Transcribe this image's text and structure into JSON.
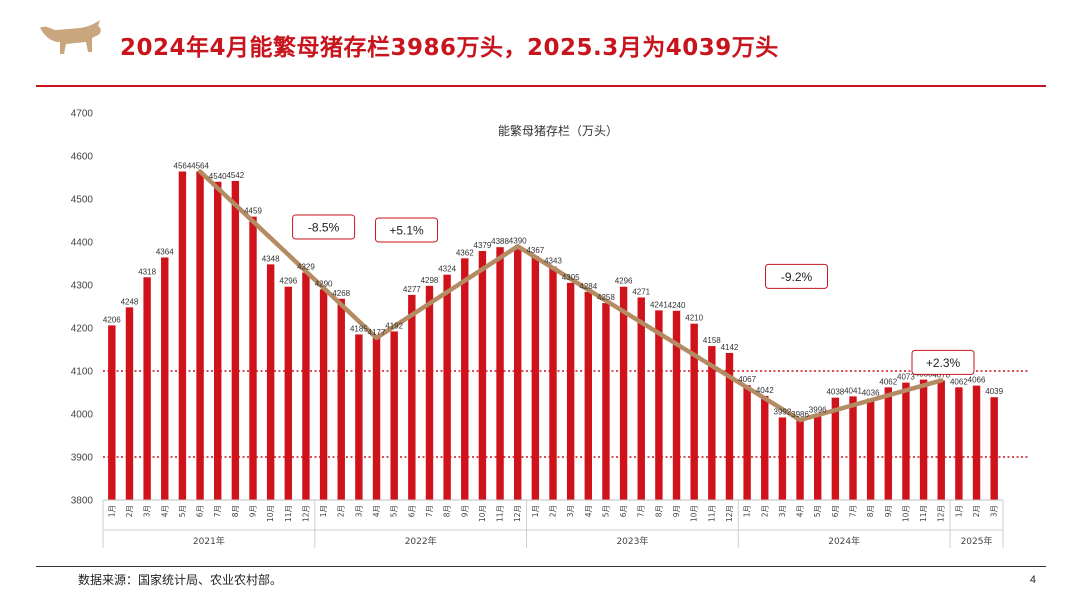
{
  "header": {
    "title": "2024年4月能繁母猪存栏3986万头，2025.3月为4039万头"
  },
  "footer": {
    "source": "数据来源：国家统计局、农业农村部。",
    "page_number": "4"
  },
  "colors": {
    "accent": "#c8141c",
    "bar": "#d0121b",
    "trend": "#b48c64"
  },
  "logo_icon": "bull-icon",
  "chart_data": {
    "type": "bar",
    "title": "能繁母猪存栏（万头）",
    "ylim": [
      3800,
      4700
    ],
    "yticks": [
      3800,
      3900,
      4000,
      4100,
      4200,
      4300,
      4400,
      4500,
      4600,
      4700
    ],
    "grid": false,
    "categories": [
      "1月",
      "2月",
      "3月",
      "4月",
      "5月",
      "6月",
      "7月",
      "8月",
      "9月",
      "10月",
      "11月",
      "12月",
      "1月",
      "2月",
      "3月",
      "4月",
      "5月",
      "6月",
      "7月",
      "8月",
      "9月",
      "10月",
      "11月",
      "12月",
      "1月",
      "2月",
      "3月",
      "4月",
      "5月",
      "6月",
      "7月",
      "8月",
      "9月",
      "10月",
      "11月",
      "12月",
      "1月",
      "2月",
      "3月",
      "4月",
      "5月",
      "6月",
      "7月",
      "8月",
      "9月",
      "10月",
      "11月",
      "12月",
      "1月",
      "2月",
      "3月"
    ],
    "year_groups": [
      {
        "label": "2021年",
        "count": 12
      },
      {
        "label": "2022年",
        "count": 12
      },
      {
        "label": "2023年",
        "count": 12
      },
      {
        "label": "2024年",
        "count": 12
      },
      {
        "label": "2025年",
        "count": 3
      }
    ],
    "values": [
      4206,
      4248,
      4318,
      4364,
      4564,
      4564,
      4540,
      4542,
      4459,
      4348,
      4296,
      4329,
      4290,
      4268,
      4185,
      4177,
      4192,
      4277,
      4298,
      4324,
      4362,
      4379,
      4388,
      4390,
      4367,
      4343,
      4305,
      4284,
      4258,
      4296,
      4271,
      4241,
      4240,
      4210,
      4158,
      4142,
      4067,
      4042,
      3992,
      3986,
      3996,
      4038,
      4041,
      4036,
      4062,
      4073,
      4080,
      4078,
      4062,
      4066,
      4039
    ],
    "reference_lines": [
      4100,
      3900
    ],
    "trend_lines": [
      {
        "from": 5,
        "to": 15
      },
      {
        "from": 15,
        "to": 23
      },
      {
        "from": 23,
        "to": 39
      },
      {
        "from": 39,
        "to": 47
      }
    ],
    "annotations": [
      {
        "text": "-8.5%",
        "x": 12.5,
        "y": 4435
      },
      {
        "text": "+5.1%",
        "x": 17.2,
        "y": 4428
      },
      {
        "text": "-9.2%",
        "x": 39.3,
        "y": 4320
      },
      {
        "text": "+2.3%",
        "x": 47.6,
        "y": 4120
      }
    ]
  }
}
